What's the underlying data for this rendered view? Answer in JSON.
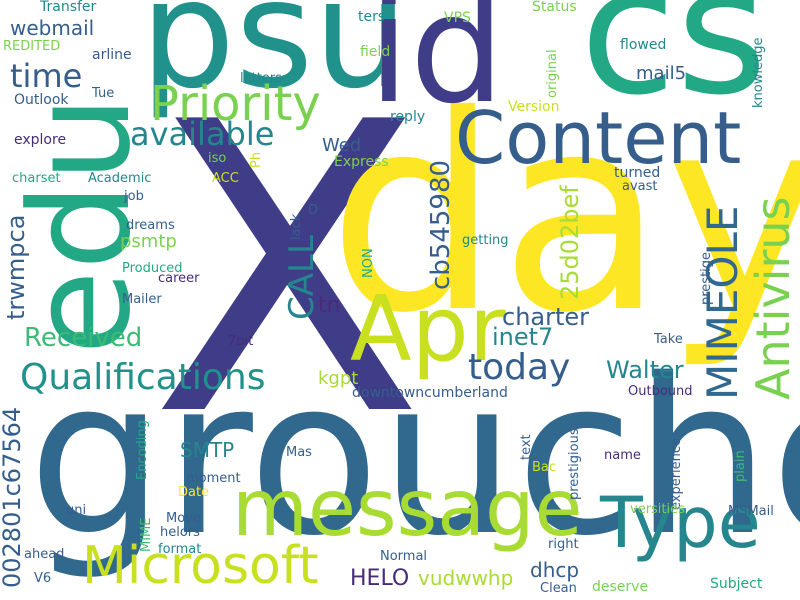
{
  "palette": {
    "navy": "#3f3d88",
    "indigo": "#472c7a",
    "blue": "#355e8d",
    "steel": "#31688e",
    "teal": "#25868e",
    "cyan": "#21918c",
    "green": "#22a884",
    "mint": "#3bbb75",
    "lime": "#7ad151",
    "yellowgreen": "#a8db34",
    "yellow": "#fde725",
    "background": "#ffffff"
  },
  "words": [
    {
      "text": "X",
      "color": "#3f3d88"
    },
    {
      "text": "groucho",
      "color": "#31688e"
    },
    {
      "text": "day",
      "color": "#fde725"
    },
    {
      "text": "cs",
      "color": "#22a884"
    },
    {
      "text": "psu",
      "color": "#21918c"
    },
    {
      "text": "id",
      "color": "#3f3d88"
    },
    {
      "text": "edu",
      "color": "#22a884"
    },
    {
      "text": "Content",
      "color": "#355e8d"
    },
    {
      "text": "message",
      "color": "#a8db34"
    },
    {
      "text": "Apr",
      "color": "#c8e020"
    },
    {
      "text": "Type",
      "color": "#25868e"
    },
    {
      "text": "Priority",
      "color": "#7ad151"
    },
    {
      "text": "Microsoft",
      "color": "#c8e020"
    },
    {
      "text": "Antivirus",
      "color": "#7ad151"
    },
    {
      "text": "MIMEOLE",
      "color": "#31688e"
    },
    {
      "text": "Qualifications",
      "color": "#21918c"
    },
    {
      "text": "available",
      "color": "#25868e"
    },
    {
      "text": "today",
      "color": "#355e8d"
    },
    {
      "text": "time",
      "color": "#355e8d"
    },
    {
      "text": "CALL",
      "color": "#25868e"
    },
    {
      "text": "cb545980",
      "color": "#355e8d"
    },
    {
      "text": "25d02bef",
      "color": "#a8db34"
    },
    {
      "text": "002801c67564",
      "color": "#355e8d"
    },
    {
      "text": "trwmpca",
      "color": "#355e8d"
    },
    {
      "text": "Received",
      "color": "#3bbb75"
    },
    {
      "text": "charter",
      "color": "#355e8d"
    },
    {
      "text": "Walter",
      "color": "#25868e"
    },
    {
      "text": "inet7",
      "color": "#25868e"
    },
    {
      "text": "webmail",
      "color": "#355e8d"
    },
    {
      "text": "mail5",
      "color": "#355e8d"
    },
    {
      "text": "SMTP",
      "color": "#25868e"
    },
    {
      "text": "HELO",
      "color": "#472c7a"
    },
    {
      "text": "vudwwhp",
      "color": "#a8db34"
    },
    {
      "text": "dhcp",
      "color": "#355e8d"
    },
    {
      "text": "kgpt",
      "color": "#a8db34"
    },
    {
      "text": "tn",
      "color": "#472c7a"
    },
    {
      "text": "Wed",
      "color": "#355e8d"
    },
    {
      "text": "psmtp",
      "color": "#7ad151"
    },
    {
      "text": "downtowncumberland",
      "color": "#355e8d"
    },
    {
      "text": "Transfer",
      "color": "#25868e"
    },
    {
      "text": "VPS",
      "color": "#7ad151"
    },
    {
      "text": "Status",
      "color": "#7ad151"
    },
    {
      "text": "ters",
      "color": "#25868e"
    },
    {
      "text": "REDITED",
      "color": "#7ad151"
    },
    {
      "text": "arline",
      "color": "#355e8d"
    },
    {
      "text": "field",
      "color": "#7ad151"
    },
    {
      "text": "flowed",
      "color": "#25868e"
    },
    {
      "text": "Outlook",
      "color": "#355e8d"
    },
    {
      "text": "Tue",
      "color": "#355e8d"
    },
    {
      "text": "letters",
      "color": "#25868e"
    },
    {
      "text": "original",
      "color": "#7ad151"
    },
    {
      "text": "knowledge",
      "color": "#25868e"
    },
    {
      "text": "explore",
      "color": "#472c7a"
    },
    {
      "text": "reply",
      "color": "#25868e"
    },
    {
      "text": "Version",
      "color": "#c8e020"
    },
    {
      "text": "Express",
      "color": "#7ad151"
    },
    {
      "text": "iso",
      "color": "#7ad151"
    },
    {
      "text": "Ph",
      "color": "#c8e020"
    },
    {
      "text": "charset",
      "color": "#22a884"
    },
    {
      "text": "Academic",
      "color": "#25868e"
    },
    {
      "text": "ACC",
      "color": "#c8e020"
    },
    {
      "text": "turned",
      "color": "#355e8d"
    },
    {
      "text": "avast",
      "color": "#355e8d"
    },
    {
      "text": "job",
      "color": "#355e8d"
    },
    {
      "text": "dreams",
      "color": "#355e8d"
    },
    {
      "text": "lack",
      "color": "#355e8d"
    },
    {
      "text": "D",
      "color": "#355e8d"
    },
    {
      "text": "getting",
      "color": "#25868e"
    },
    {
      "text": "NON",
      "color": "#22a884"
    },
    {
      "text": "Produced",
      "color": "#22a884"
    },
    {
      "text": "career",
      "color": "#472c7a"
    },
    {
      "text": "Mailer",
      "color": "#355e8d"
    },
    {
      "text": "prestige",
      "color": "#355e8d"
    },
    {
      "text": "7bit",
      "color": "#472c7a"
    },
    {
      "text": "Take",
      "color": "#355e8d"
    },
    {
      "text": "Outbound",
      "color": "#472c7a"
    },
    {
      "text": "prestigious",
      "color": "#355e8d"
    },
    {
      "text": "Encoding",
      "color": "#22a884"
    },
    {
      "text": "text",
      "color": "#355e8d"
    },
    {
      "text": "experience",
      "color": "#355e8d"
    },
    {
      "text": "Mas",
      "color": "#355e8d"
    },
    {
      "text": "moment",
      "color": "#355e8d"
    },
    {
      "text": "Date",
      "color": "#fde725"
    },
    {
      "text": "Bac",
      "color": "#c8e020"
    },
    {
      "text": "name",
      "color": "#472c7a"
    },
    {
      "text": "plain",
      "color": "#3bbb75"
    },
    {
      "text": "uni",
      "color": "#355e8d"
    },
    {
      "text": "Move",
      "color": "#355e8d"
    },
    {
      "text": "helors",
      "color": "#355e8d"
    },
    {
      "text": "MIME",
      "color": "#3bbb75"
    },
    {
      "text": "format",
      "color": "#25868e"
    },
    {
      "text": "versities",
      "color": "#7ad151"
    },
    {
      "text": "MSMail",
      "color": "#355e8d"
    },
    {
      "text": "ahead",
      "color": "#355e8d"
    },
    {
      "text": "right",
      "color": "#355e8d"
    },
    {
      "text": "Normal",
      "color": "#355e8d"
    },
    {
      "text": "V6",
      "color": "#355e8d"
    },
    {
      "text": "Clean",
      "color": "#355e8d"
    },
    {
      "text": "deserve",
      "color": "#7ad151"
    },
    {
      "text": "Subject",
      "color": "#22a884"
    }
  ]
}
